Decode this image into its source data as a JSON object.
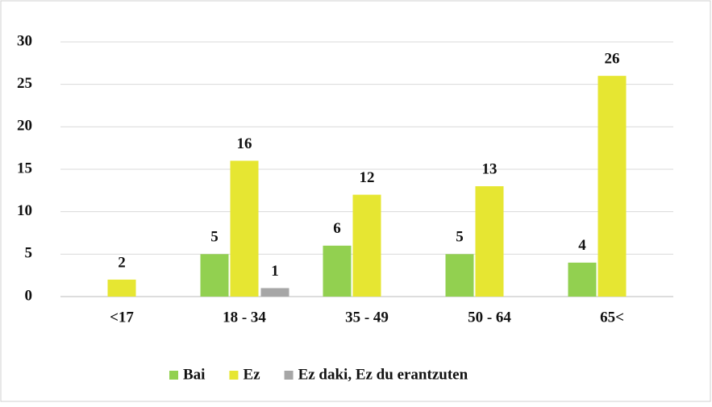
{
  "chart_data": {
    "type": "bar",
    "categories": [
      "<17",
      "18 - 34",
      "35 - 49",
      "50 - 64",
      "65<"
    ],
    "series": [
      {
        "name": "Bai",
        "color": "#92d050",
        "values": [
          null,
          5,
          6,
          5,
          4
        ]
      },
      {
        "name": "Ez",
        "color": "#e6e632",
        "values": [
          2,
          16,
          12,
          13,
          26
        ]
      },
      {
        "name": "Ez daki, Ez du erantzuten",
        "color": "#a6a6a6",
        "values": [
          null,
          1,
          null,
          null,
          null
        ]
      }
    ],
    "ylim": [
      0,
      30
    ],
    "yticks": [
      0,
      5,
      10,
      15,
      20,
      25,
      30
    ],
    "grid": true,
    "legend": "bottom"
  }
}
